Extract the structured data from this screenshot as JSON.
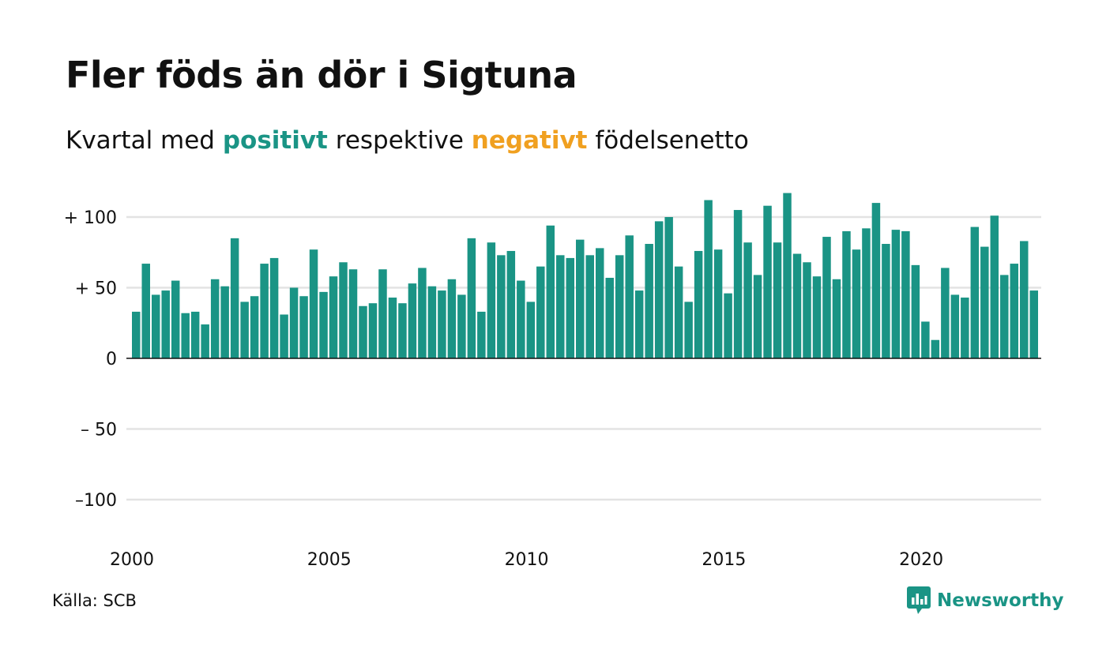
{
  "header": {
    "title": "Fler föds än dör i Sigtuna",
    "subtitle_prefix": "Kvartal med",
    "subtitle_positive": "positivt",
    "subtitle_middle": "respektive",
    "subtitle_negative": "negativt",
    "subtitle_suffix": "födelsenetto"
  },
  "footer": {
    "source": "Källa: SCB",
    "brand": "Newsworthy"
  },
  "colors": {
    "positive": "#1a9485",
    "negative": "#f0a020",
    "grid": "#e3e3e3",
    "text": "#111111"
  },
  "chart_data": {
    "type": "bar",
    "title": "Fler föds än dör i Sigtuna",
    "subtitle": "Kvartal med positivt respektive negativt födelsenetto",
    "x_start": "2000 Q1",
    "frequency": "quarterly",
    "x_ticks": [
      "2000",
      "2005",
      "2010",
      "2015",
      "2020"
    ],
    "y_ticks": [
      {
        "value": 100,
        "label": "+ 100"
      },
      {
        "value": 50,
        "label": "+  50"
      },
      {
        "value": 0,
        "label": "0"
      },
      {
        "value": -50,
        "label": "– 50"
      },
      {
        "value": -100,
        "label": "–100"
      }
    ],
    "ylim": [
      -120,
      120
    ],
    "grid": true,
    "values": [
      33,
      67,
      45,
      48,
      55,
      32,
      33,
      24,
      56,
      51,
      85,
      40,
      44,
      67,
      71,
      31,
      50,
      44,
      77,
      47,
      58,
      68,
      63,
      37,
      39,
      63,
      43,
      39,
      53,
      64,
      51,
      48,
      56,
      45,
      85,
      33,
      82,
      73,
      76,
      55,
      40,
      65,
      94,
      73,
      71,
      84,
      73,
      78,
      57,
      73,
      87,
      48,
      81,
      97,
      100,
      65,
      40,
      76,
      112,
      77,
      46,
      105,
      82,
      59,
      108,
      82,
      117,
      74,
      68,
      58,
      86,
      56,
      90,
      77,
      92,
      110,
      81,
      91,
      90,
      66,
      26,
      13,
      64,
      45,
      43,
      93,
      79,
      101,
      59,
      67,
      83,
      48
    ]
  }
}
